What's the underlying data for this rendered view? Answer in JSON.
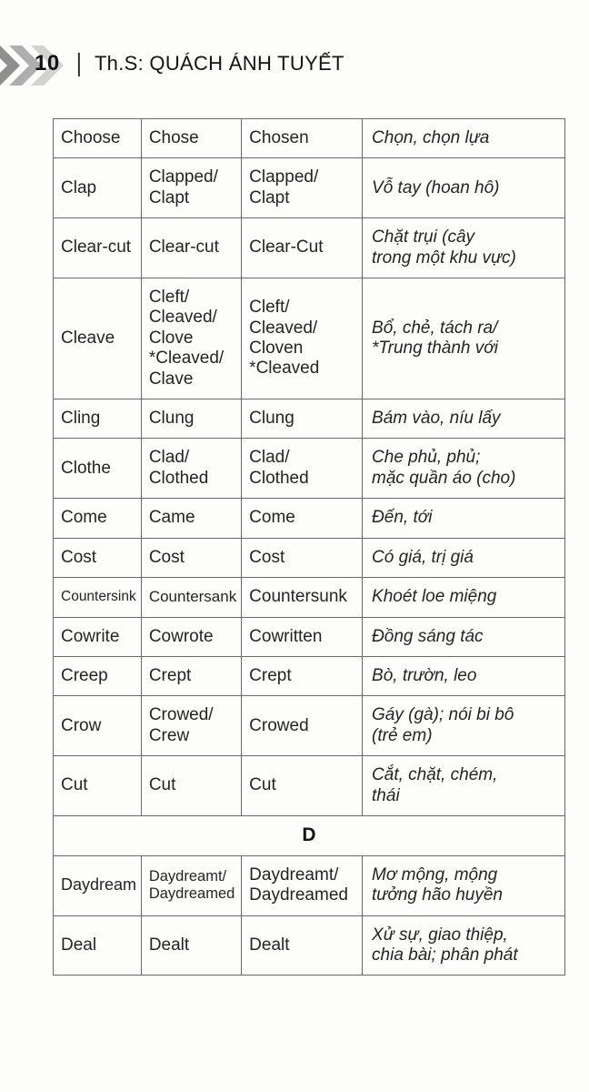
{
  "header": {
    "page_number": "10",
    "separator": "|",
    "author": "Th.S: QUÁCH ÁNH TUYẾT"
  },
  "table": {
    "rows": [
      {
        "type": "verb",
        "base": "Choose",
        "past": "Chose",
        "participle": "Chosen",
        "meaning": "Chọn, chọn lựa"
      },
      {
        "type": "verb",
        "base": "Clap",
        "past": "Clapped/\nClapt",
        "participle": "Clapped/\nClapt",
        "meaning": "Vỗ tay (hoan hô)"
      },
      {
        "type": "verb",
        "base": "Clear-cut",
        "past": "Clear-cut",
        "participle": "Clear-Cut",
        "meaning": "Chặt trụi (cây\ntrong một khu vực)"
      },
      {
        "type": "verb",
        "base": "Cleave",
        "past": "Cleft/\nCleaved/\nClove\n*Cleaved/\nClave",
        "participle": "Cleft/\nCleaved/\nCloven\n*Cleaved",
        "meaning": "Bổ, chẻ, tách ra/\n*Trung thành với"
      },
      {
        "type": "verb",
        "base": "Cling",
        "past": "Clung",
        "participle": "Clung",
        "meaning": "Bám vào, níu lấy"
      },
      {
        "type": "verb",
        "base": "Clothe",
        "past": "Clad/\nClothed",
        "participle": "Clad/\nClothed",
        "meaning": "Che phủ, phủ;\nmặc quần áo (cho)"
      },
      {
        "type": "verb",
        "base": "Come",
        "past": "Came",
        "participle": "Come",
        "meaning": "Đến, tới"
      },
      {
        "type": "verb",
        "base": "Cost",
        "past": "Cost",
        "participle": "Cost",
        "meaning": "Có giá, trị giá"
      },
      {
        "type": "verb",
        "base": "Countersink",
        "past": "Countersank",
        "participle": "Countersunk",
        "meaning": "Khoét loe miệng"
      },
      {
        "type": "verb",
        "base": "Cowrite",
        "past": "Cowrote",
        "participle": "Cowritten",
        "meaning": "Đồng sáng tác"
      },
      {
        "type": "verb",
        "base": "Creep",
        "past": "Crept",
        "participle": "Crept",
        "meaning": "Bò, trườn, leo"
      },
      {
        "type": "verb",
        "base": "Crow",
        "past": "Crowed/\nCrew",
        "participle": "Crowed",
        "meaning": "Gáy (gà); nói bi bô\n(trẻ em)"
      },
      {
        "type": "verb",
        "base": "Cut",
        "past": "Cut",
        "participle": "Cut",
        "meaning": "Cắt, chặt, chém,\nthái"
      },
      {
        "type": "section",
        "label": "D"
      },
      {
        "type": "verb",
        "base": "Daydream",
        "past": "Daydreamt/\nDaydreamed",
        "participle": "Daydreamt/\nDaydreamed",
        "meaning": "Mơ mộng, mộng\ntưởng hão huyền"
      },
      {
        "type": "verb",
        "base": "Deal",
        "past": "Dealt",
        "participle": "Dealt",
        "meaning": "Xử sự, giao thiệp,\nchia bài; phân phát"
      }
    ]
  },
  "colors": {
    "border": "#6e6960",
    "text": "#242424",
    "chevron_dark": "#8f8f8f",
    "chevron_mid": "#aeaeae",
    "chevron_light": "#cfcfcf"
  }
}
